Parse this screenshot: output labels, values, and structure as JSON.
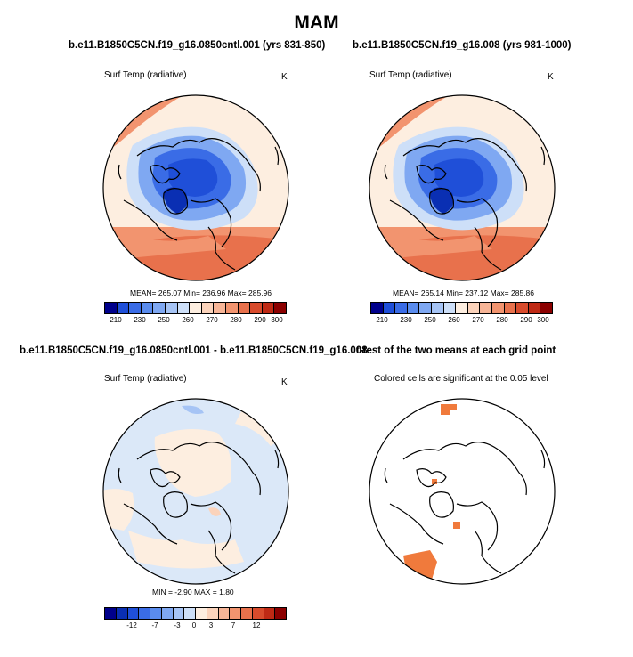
{
  "figure": {
    "title": "MAM"
  },
  "colors": {
    "scale": [
      "#00008b",
      "#0a2fb3",
      "#1f4fd8",
      "#3a6ce6",
      "#5a8cee",
      "#7fa8f2",
      "#a6c4f5",
      "#cddff8",
      "#fdeee0",
      "#fbd3bb",
      "#f7b597",
      "#f2946f",
      "#e8714c",
      "#d84b2c",
      "#bf2a15",
      "#8b0000"
    ],
    "land_outline": "#000000",
    "significant_cell": "#f07a3c"
  },
  "panels": [
    {
      "title": "b.e11.B1850C5CN.f19_g16.0850cntl.001 (yrs 831-850)",
      "variable": "Surf Temp (radiative)",
      "units": "K",
      "stats": "MEAN= 265.07  Min= 236.96  Max= 285.96",
      "legend_labels": [
        "210",
        "230",
        "250",
        "260",
        "270",
        "280",
        "290",
        "300"
      ]
    },
    {
      "title": "b.e11.B1850C5CN.f19_g16.008 (yrs 981-1000)",
      "variable": "Surf Temp (radiative)",
      "units": "K",
      "stats": "MEAN= 265.14  Min= 237.12  Max= 285.86",
      "legend_labels": [
        "210",
        "230",
        "250",
        "260",
        "270",
        "280",
        "290",
        "300"
      ]
    },
    {
      "title": "b.e11.B1850C5CN.f19_g16.0850cntl.001 - b.e11.B1850C5CN.f19_g16.008",
      "variable": "Surf Temp (radiative)",
      "units": "K",
      "stats": "MIN =  -2.90 MAX =   1.80",
      "legend_labels": [
        "-12",
        "-7",
        "-3",
        "0",
        "3",
        "7",
        "12"
      ]
    },
    {
      "title": "t-test of the two means at each grid point",
      "variable": "Colored cells are significant at the 0.05 level"
    }
  ]
}
